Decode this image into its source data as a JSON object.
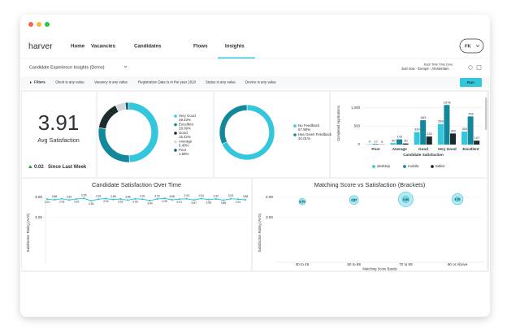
{
  "nav": {
    "logo": "harver",
    "items": [
      "Home",
      "Vacancies",
      "Candidates",
      "Flows",
      "Insights"
    ],
    "active": 4,
    "user": "FK"
  },
  "toolbar": {
    "title": "Candidate Experience Insights (Demo)",
    "timezone_label": "Each Time Time Zone :",
    "timezone": "Just now · Europe - Amsterdam"
  },
  "filters": {
    "label": "Filters",
    "items": [
      "Client is any value",
      "Vacancy is any value",
      "Registration Date is in the year 2020",
      "Status is any value",
      "Device is any value"
    ],
    "run": "Run"
  },
  "kpi": {
    "value": 3.91,
    "label": "Avg Satisfaction",
    "change": 0.02,
    "change_note": "Since Last Week"
  },
  "chart_data": [
    {
      "type": "donut",
      "categories": [
        "Very Good",
        "Excellent",
        "Good",
        "Average",
        "Poor"
      ],
      "values": [
        49.43,
        28.09,
        15.42,
        5.4,
        1.66
      ],
      "value_labels": [
        "49.43%",
        "28.09%",
        "15.42%",
        "5.40%",
        "1.66%"
      ],
      "colors": [
        "#34c6dc",
        "#12889a",
        "#1e2b2e",
        "#d3d7d9",
        "#0d5f6b"
      ]
    },
    {
      "type": "donut",
      "categories": [
        "No Feedback",
        "Has Given Feedback"
      ],
      "values": [
        67.99,
        32.01
      ],
      "value_labels": [
        "67.99%",
        "32.01%"
      ],
      "colors": [
        "#34c6dc",
        "#12889a"
      ]
    },
    {
      "type": "bar",
      "xlabel": "Candidate Satisfaction",
      "ylabel": "Completed Applications",
      "categories": [
        "Poor",
        "Average",
        "Good",
        "Very Good",
        "Excellent"
      ],
      "series": [
        {
          "name": "desktop",
          "color": "#34c6dc",
          "values": [
            9,
            40,
            339,
            560,
            353
          ]
        },
        {
          "name": "mobile",
          "color": "#12889a",
          "values": [
            17,
            143,
            663,
            1078,
            766
          ]
        },
        {
          "name": "tablet",
          "color": "#1e2b2e",
          "values": [
            5,
            30,
            220,
            302,
            107
          ]
        }
      ],
      "ylim": [
        0,
        1150
      ],
      "yticks": [
        0,
        500,
        {
          "value": 1000,
          "label": "1,000"
        }
      ]
    },
    {
      "type": "line",
      "title": "Candidate Satisfaction Over Time",
      "ylabel": "Satisfaction Rating (AVG)",
      "color": "#34c6dc",
      "values": [
        3.91,
        3.88,
        3.93,
        3.87,
        3.92,
        3.95,
        3.83,
        3.91,
        3.94,
        3.89,
        3.92,
        3.86,
        3.93,
        3.91,
        3.84,
        3.92,
        3.95,
        3.88,
        3.91,
        3.93,
        3.87,
        3.94,
        3.89,
        3.92,
        3.86,
        3.93,
        3.91,
        3.88
      ],
      "ylim": [
        0.7,
        4.2
      ],
      "yticks": [
        {
          "value": 4,
          "label": "4.00"
        },
        {
          "value": 3,
          "label": "3.00"
        }
      ]
    },
    {
      "type": "bubble",
      "title": "Matching Score vs Satisfaction (Brackets)",
      "ylabel": "Satisfaction Rating (AVG)",
      "xlabel": "Matching Score Bands",
      "color": "#34c6dc",
      "categories": [
        "30 to 49",
        "50 to 69",
        "70 to 89",
        "90 or Above"
      ],
      "values": [
        3.79,
        3.87,
        3.9,
        3.91
      ],
      "value_labels": [
        "3.79",
        "3.87",
        "3.90",
        "3.91"
      ],
      "sizes": [
        60,
        110,
        300,
        170
      ],
      "ylim": [
        0.7,
        4.2
      ],
      "yticks": [
        {
          "value": 4,
          "label": "4.00"
        },
        {
          "value": 3,
          "label": "3.00"
        }
      ]
    }
  ]
}
